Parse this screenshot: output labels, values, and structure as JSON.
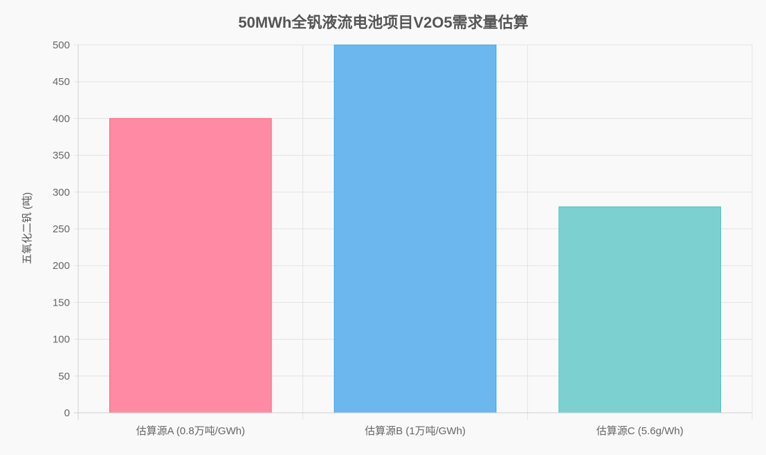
{
  "chart_data": {
    "type": "bar",
    "title": "50MWh全钒液流电池项目V2O5需求量估算",
    "ylabel": "五氧化二钒 (吨)",
    "xlabel": "",
    "categories": [
      "估算源A (0.8万吨/GWh)",
      "估算源B (1万吨/GWh)",
      "估算源C (5.6g/Wh)"
    ],
    "values": [
      400,
      500,
      280
    ],
    "ylim": [
      0,
      500
    ],
    "yticks": [
      0,
      50,
      100,
      150,
      200,
      250,
      300,
      350,
      400,
      450,
      500
    ],
    "grid": true,
    "colors": {
      "bars": [
        "#ff8aa3",
        "#6cb8ee",
        "#7cd1d0"
      ],
      "bar_borders": [
        "#ff6384",
        "#36a2eb",
        "#4bc0c0"
      ]
    }
  }
}
